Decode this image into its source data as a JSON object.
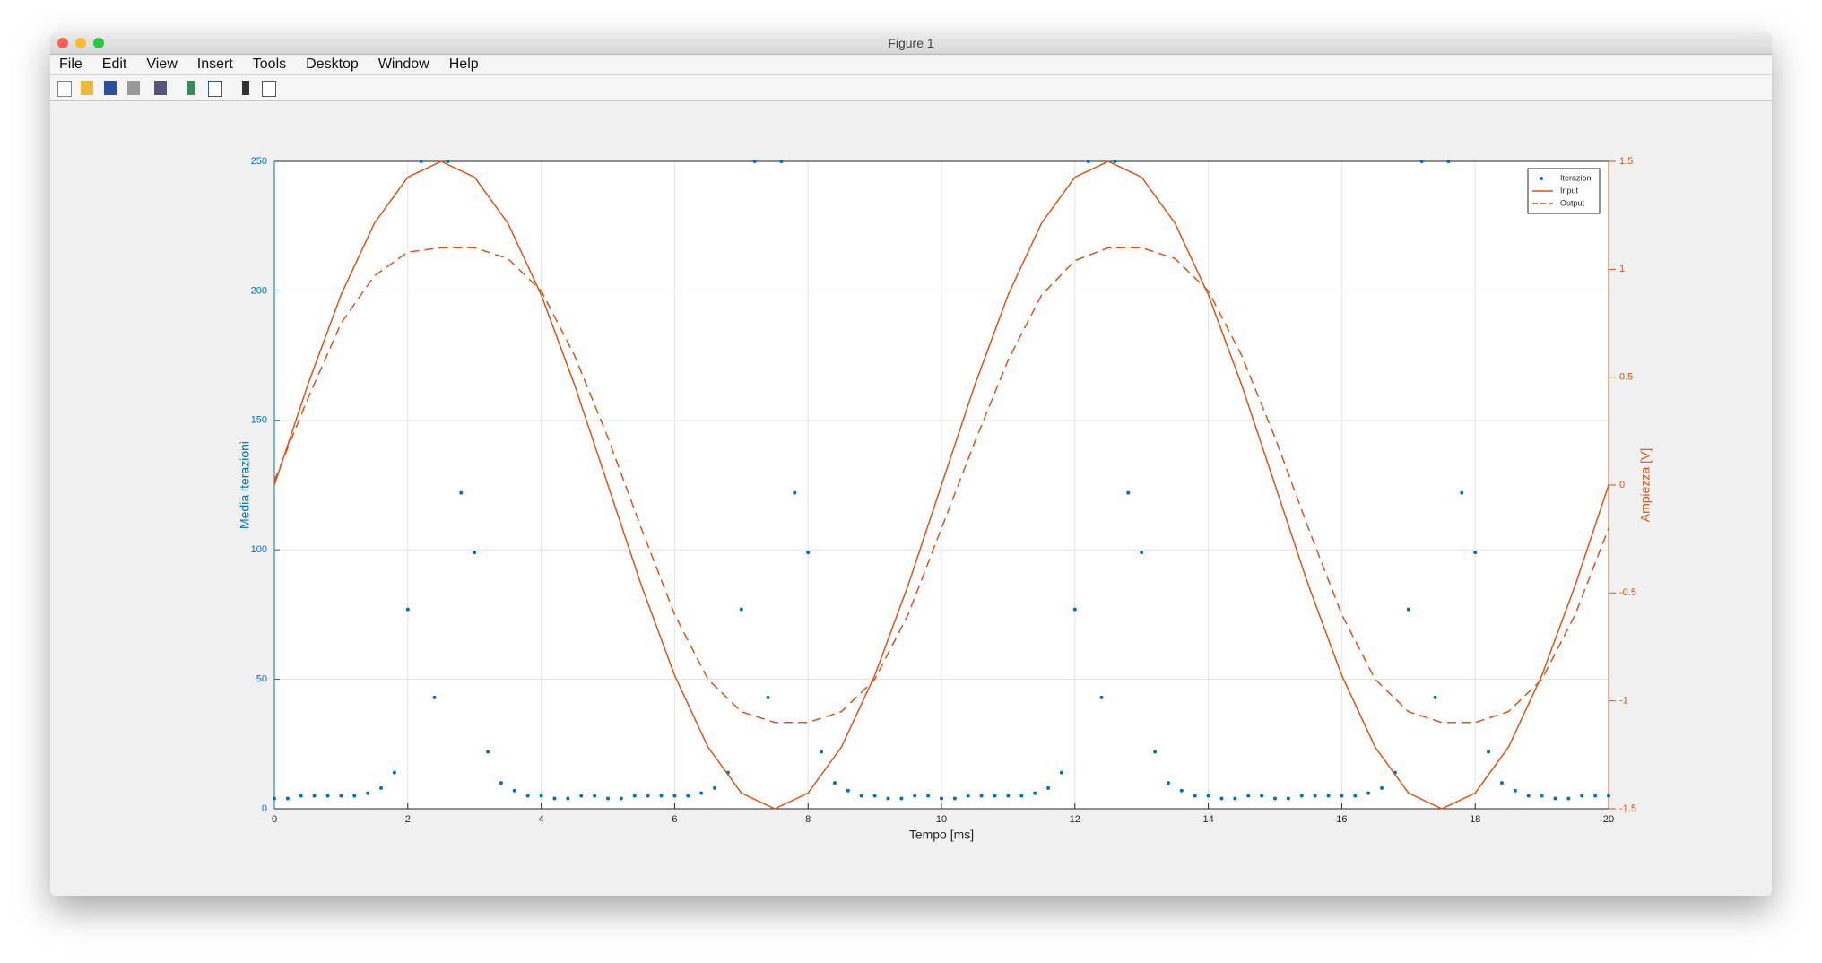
{
  "window_title": "Figure 1",
  "menu": [
    "File",
    "Edit",
    "View",
    "Insert",
    "Tools",
    "Desktop",
    "Window",
    "Help"
  ],
  "chart_data": {
    "type": "combo",
    "xlabel": "Tempo [ms]",
    "ylabel": "Media iterazioni",
    "y2label": "Ampiezza [V]",
    "xlim": [
      0,
      20
    ],
    "xticks": [
      0,
      2,
      4,
      6,
      8,
      10,
      12,
      14,
      16,
      18,
      20
    ],
    "ylim": [
      0,
      250
    ],
    "yticks": [
      0,
      50,
      100,
      150,
      200,
      250
    ],
    "y2lim": [
      -1.5,
      1.5
    ],
    "y2ticks": [
      -1.5,
      -1,
      -0.5,
      0,
      0.5,
      1,
      1.5
    ],
    "grid": true,
    "legend": "northeast",
    "series": [
      {
        "name": "Iterazioni",
        "color": "#0072bd",
        "mode": "markers",
        "x": [
          0,
          0.2,
          0.4,
          0.6,
          0.8,
          1,
          1.2,
          1.4,
          1.6,
          1.8,
          2,
          2.2,
          2.4,
          2.6,
          2.8,
          3,
          3.2,
          3.4,
          3.6,
          3.8,
          4,
          4.2,
          4.4,
          4.6,
          4.8,
          5,
          5.2,
          5.4,
          5.6,
          5.8,
          6,
          6.2,
          6.4,
          6.6,
          6.8,
          7,
          7.2,
          7.4,
          7.6,
          7.8,
          8,
          8.2,
          8.4,
          8.6,
          8.8,
          9,
          9.2,
          9.4,
          9.6,
          9.8,
          10,
          10.2,
          10.4,
          10.6,
          10.8,
          11,
          11.2,
          11.4,
          11.6,
          11.8,
          12,
          12.2,
          12.4,
          12.6,
          12.8,
          13,
          13.2,
          13.4,
          13.6,
          13.8,
          14,
          14.2,
          14.4,
          14.6,
          14.8,
          15,
          15.2,
          15.4,
          15.6,
          15.8,
          16,
          16.2,
          16.4,
          16.6,
          16.8,
          17,
          17.2,
          17.4,
          17.6,
          17.8,
          18,
          18.2,
          18.4,
          18.6,
          18.8,
          19,
          19.2,
          19.4,
          19.6,
          19.8,
          20
        ],
        "values": [
          4,
          4,
          5,
          5,
          5,
          5,
          5,
          6,
          8,
          14,
          77,
          250,
          43,
          250,
          122,
          99,
          22,
          10,
          7,
          5,
          5,
          4,
          4,
          5,
          5,
          4,
          4,
          5,
          5,
          5,
          5,
          5,
          6,
          8,
          14,
          77,
          250,
          43,
          250,
          122,
          99,
          22,
          10,
          7,
          5,
          5,
          4,
          4,
          5,
          5,
          4,
          4,
          5,
          5,
          5,
          5,
          5,
          6,
          8,
          14,
          77,
          250,
          43,
          250,
          122,
          99,
          22,
          10,
          7,
          5,
          5,
          4,
          4,
          5,
          5,
          4,
          4,
          5,
          5,
          5,
          5,
          5,
          6,
          8,
          14,
          77,
          250,
          43,
          250,
          122,
          99,
          22,
          10,
          7,
          5,
          5,
          4,
          4,
          5,
          5,
          5
        ]
      },
      {
        "name": "Input",
        "color": "#d95319",
        "mode": "solid",
        "axis": "y2",
        "x": [
          0,
          0.5,
          1,
          1.5,
          2,
          2.5,
          3,
          3.5,
          4,
          4.5,
          5,
          5.5,
          6,
          6.5,
          7,
          7.5,
          8,
          8.5,
          9,
          9.5,
          10,
          10.5,
          11,
          11.5,
          12,
          12.5,
          13,
          13.5,
          14,
          14.5,
          15,
          15.5,
          16,
          16.5,
          17,
          17.5,
          18,
          18.5,
          19,
          19.5,
          20
        ],
        "values": [
          0,
          0.464,
          0.882,
          1.214,
          1.427,
          1.5,
          1.427,
          1.214,
          0.882,
          0.464,
          0,
          -0.464,
          -0.882,
          -1.214,
          -1.427,
          -1.5,
          -1.427,
          -1.214,
          -0.882,
          -0.464,
          0,
          0.464,
          0.882,
          1.214,
          1.427,
          1.5,
          1.427,
          1.214,
          0.882,
          0.464,
          0,
          -0.464,
          -0.882,
          -1.214,
          -1.427,
          -1.5,
          -1.427,
          -1.214,
          -0.882,
          -0.464,
          0
        ]
      },
      {
        "name": "Output",
        "color": "#d95319",
        "mode": "dashed",
        "axis": "y2",
        "x": [
          0,
          0.5,
          1,
          1.5,
          2,
          2.5,
          3,
          3.5,
          4,
          4.5,
          5,
          5.5,
          6,
          6.5,
          7,
          7.5,
          8,
          8.5,
          9,
          9.5,
          10,
          10.5,
          11,
          11.5,
          12,
          12.5,
          13,
          13.5,
          14,
          14.5,
          15,
          15.5,
          16,
          16.5,
          17,
          17.5,
          18,
          18.5,
          19,
          19.5,
          20
        ],
        "values": [
          0.02,
          0.4,
          0.75,
          0.97,
          1.08,
          1.1,
          1.1,
          1.05,
          0.9,
          0.6,
          0.22,
          -0.2,
          -0.6,
          -0.9,
          -1.05,
          -1.1,
          -1.1,
          -1.05,
          -0.9,
          -0.6,
          -0.2,
          0.2,
          0.58,
          0.88,
          1.04,
          1.1,
          1.1,
          1.05,
          0.9,
          0.6,
          0.22,
          -0.2,
          -0.6,
          -0.9,
          -1.05,
          -1.1,
          -1.1,
          -1.05,
          -0.9,
          -0.6,
          -0.2
        ]
      }
    ]
  }
}
